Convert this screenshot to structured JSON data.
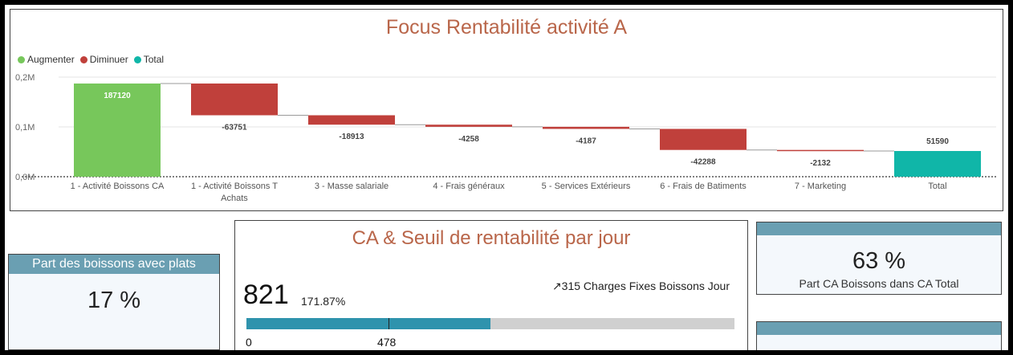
{
  "waterfall": {
    "title": "Focus Rentabilité activité A",
    "legend": [
      {
        "label": "Augmenter",
        "color": "#77c75b"
      },
      {
        "label": "Diminuer",
        "color": "#c0403b"
      },
      {
        "label": "Total",
        "color": "#10b6a8"
      }
    ]
  },
  "chart_data": {
    "type": "bar",
    "subtype": "waterfall",
    "y_ticks": [
      "0,0M",
      "0,1M",
      "0,2M"
    ],
    "ylim": [
      0,
      200000
    ],
    "grid": true,
    "legend_position": "top-left",
    "categories": [
      [
        "1 - Activité Boissons CA"
      ],
      [
        "1 - Activité Boissons T",
        "Achats"
      ],
      [
        "3 - Masse salariale"
      ],
      [
        "4 - Frais généraux"
      ],
      [
        "5 - Services Extérieurs"
      ],
      [
        "6 - Frais de Batiments"
      ],
      [
        "7 - Marketing"
      ],
      [
        "Total"
      ]
    ],
    "values": [
      187120,
      -63751,
      -18913,
      -4258,
      -4187,
      -42288,
      -2132,
      51590
    ],
    "data_labels": [
      "187120",
      "-63751",
      "-18913",
      "-4258",
      "-4187",
      "-42288",
      "-2132",
      "51590"
    ],
    "kinds": [
      "increase",
      "decrease",
      "decrease",
      "decrease",
      "decrease",
      "decrease",
      "decrease",
      "total"
    ]
  },
  "ca_gauge": {
    "title": "CA & Seuil de rentabilité par jour",
    "value": "821",
    "percent": "171.87%",
    "target_text": "↗315 Charges Fixes Boissons Jour",
    "min_label": "0",
    "marker_label": "478",
    "value_num": 821,
    "max_num": 1642,
    "marker_num": 478
  },
  "card_left": {
    "title": "Part des boissons avec plats",
    "value": "17 %"
  },
  "card_right": {
    "value": "63 %",
    "label": "Part CA Boissons dans CA Total"
  }
}
